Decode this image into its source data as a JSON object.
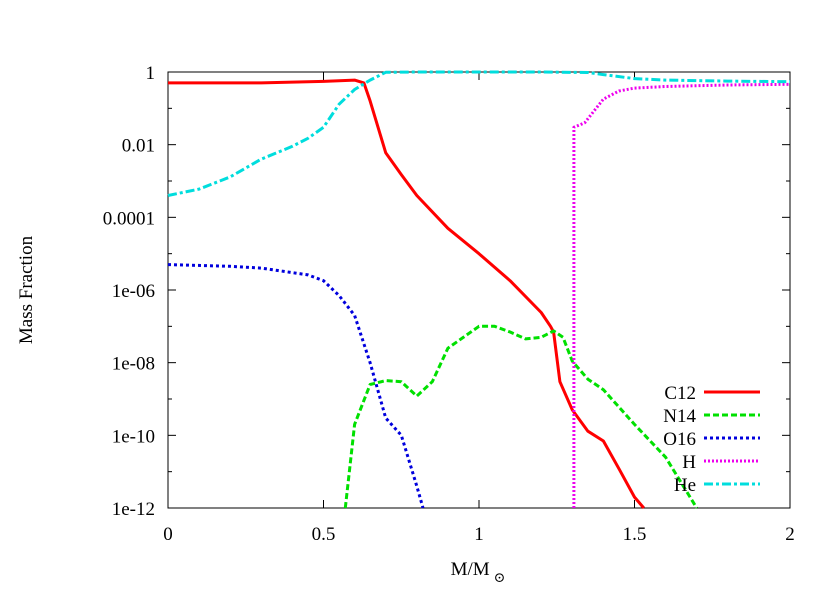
{
  "chart_data": {
    "type": "line",
    "title": "",
    "xlabel": "M/M",
    "xlabel_subscript": "⊙",
    "ylabel": "Mass Fraction",
    "xlim": [
      0,
      2
    ],
    "ylim": [
      1e-12,
      1
    ],
    "yscale": "log",
    "grid": false,
    "legend_position": "bottom-right",
    "x_ticks": [
      "0",
      "0.5",
      "1",
      "1.5",
      "2"
    ],
    "x_tick_values": [
      0,
      0.5,
      1,
      1.5,
      2
    ],
    "y_ticks": [
      "1e-12",
      "1e-10",
      "1e-08",
      "1e-06",
      "0.0001",
      "0.01",
      "1"
    ],
    "y_tick_values": [
      -12,
      -10,
      -8,
      -6,
      -4,
      -2,
      0
    ],
    "series": [
      {
        "name": "C12",
        "color": "#ff0000",
        "dash": "solid",
        "points": [
          [
            0.0,
            0.5
          ],
          [
            0.3,
            0.5
          ],
          [
            0.5,
            0.55
          ],
          [
            0.6,
            0.6
          ],
          [
            0.63,
            0.5
          ],
          [
            0.65,
            0.16
          ],
          [
            0.7,
            0.006
          ],
          [
            0.75,
            0.0015
          ],
          [
            0.8,
            0.0004
          ],
          [
            0.9,
            5e-05
          ],
          [
            1.0,
            1e-05
          ],
          [
            1.1,
            1.8e-06
          ],
          [
            1.2,
            2.4e-07
          ],
          [
            1.23,
            1e-07
          ],
          [
            1.24,
            7e-08
          ],
          [
            1.26,
            3e-09
          ],
          [
            1.3,
            5e-10
          ],
          [
            1.35,
            1.3e-10
          ],
          [
            1.4,
            7e-11
          ],
          [
            1.45,
            1.2e-11
          ],
          [
            1.5,
            2e-12
          ],
          [
            1.53,
            1e-12
          ]
        ]
      },
      {
        "name": "N14",
        "color": "#00e000",
        "dash": "dashed",
        "points": [
          [
            0.57,
            1e-12
          ],
          [
            0.6,
            2e-10
          ],
          [
            0.65,
            2.5e-09
          ],
          [
            0.7,
            3.2e-09
          ],
          [
            0.75,
            3e-09
          ],
          [
            0.8,
            1.2e-09
          ],
          [
            0.85,
            3e-09
          ],
          [
            0.9,
            2.5e-08
          ],
          [
            1.0,
            1e-07
          ],
          [
            1.05,
            1e-07
          ],
          [
            1.1,
            7e-08
          ],
          [
            1.15,
            4.5e-08
          ],
          [
            1.2,
            5e-08
          ],
          [
            1.24,
            7.5e-08
          ],
          [
            1.27,
            5e-08
          ],
          [
            1.3,
            1.1e-08
          ],
          [
            1.35,
            3.5e-09
          ],
          [
            1.4,
            1.8e-09
          ],
          [
            1.5,
            2e-10
          ],
          [
            1.6,
            2.5e-11
          ],
          [
            1.7,
            1e-12
          ]
        ]
      },
      {
        "name": "O16",
        "color": "#0000dd",
        "dash": "dotted",
        "points": [
          [
            0.0,
            5e-06
          ],
          [
            0.2,
            4.5e-06
          ],
          [
            0.3,
            4e-06
          ],
          [
            0.45,
            2.6e-06
          ],
          [
            0.5,
            1.8e-06
          ],
          [
            0.55,
            7e-07
          ],
          [
            0.6,
            2e-07
          ],
          [
            0.65,
            1e-08
          ],
          [
            0.7,
            3e-10
          ],
          [
            0.75,
            1e-10
          ],
          [
            0.8,
            4e-12
          ],
          [
            0.82,
            1e-12
          ]
        ]
      },
      {
        "name": "H",
        "color": "#ee00ee",
        "dash": "fine-dotted",
        "points": [
          [
            1.305,
            1e-12
          ],
          [
            1.305,
            0.03
          ],
          [
            1.34,
            0.04
          ],
          [
            1.4,
            0.18
          ],
          [
            1.45,
            0.3
          ],
          [
            1.5,
            0.36
          ],
          [
            1.6,
            0.4
          ],
          [
            1.7,
            0.42
          ],
          [
            1.8,
            0.44
          ],
          [
            2.0,
            0.46
          ]
        ]
      },
      {
        "name": "He",
        "color": "#00dddd",
        "dash": "dash-dot",
        "points": [
          [
            0.0,
            0.0004
          ],
          [
            0.1,
            0.0006
          ],
          [
            0.2,
            0.0013
          ],
          [
            0.3,
            0.004
          ],
          [
            0.4,
            0.009
          ],
          [
            0.45,
            0.015
          ],
          [
            0.5,
            0.03
          ],
          [
            0.55,
            0.13
          ],
          [
            0.6,
            0.33
          ],
          [
            0.65,
            0.6
          ],
          [
            0.7,
            0.98
          ],
          [
            0.8,
            1.0
          ],
          [
            1.0,
            1.0
          ],
          [
            1.2,
            1.0
          ],
          [
            1.35,
            0.97
          ],
          [
            1.4,
            0.85
          ],
          [
            1.5,
            0.66
          ],
          [
            1.6,
            0.6
          ],
          [
            1.8,
            0.56
          ],
          [
            2.0,
            0.54
          ]
        ]
      }
    ]
  }
}
